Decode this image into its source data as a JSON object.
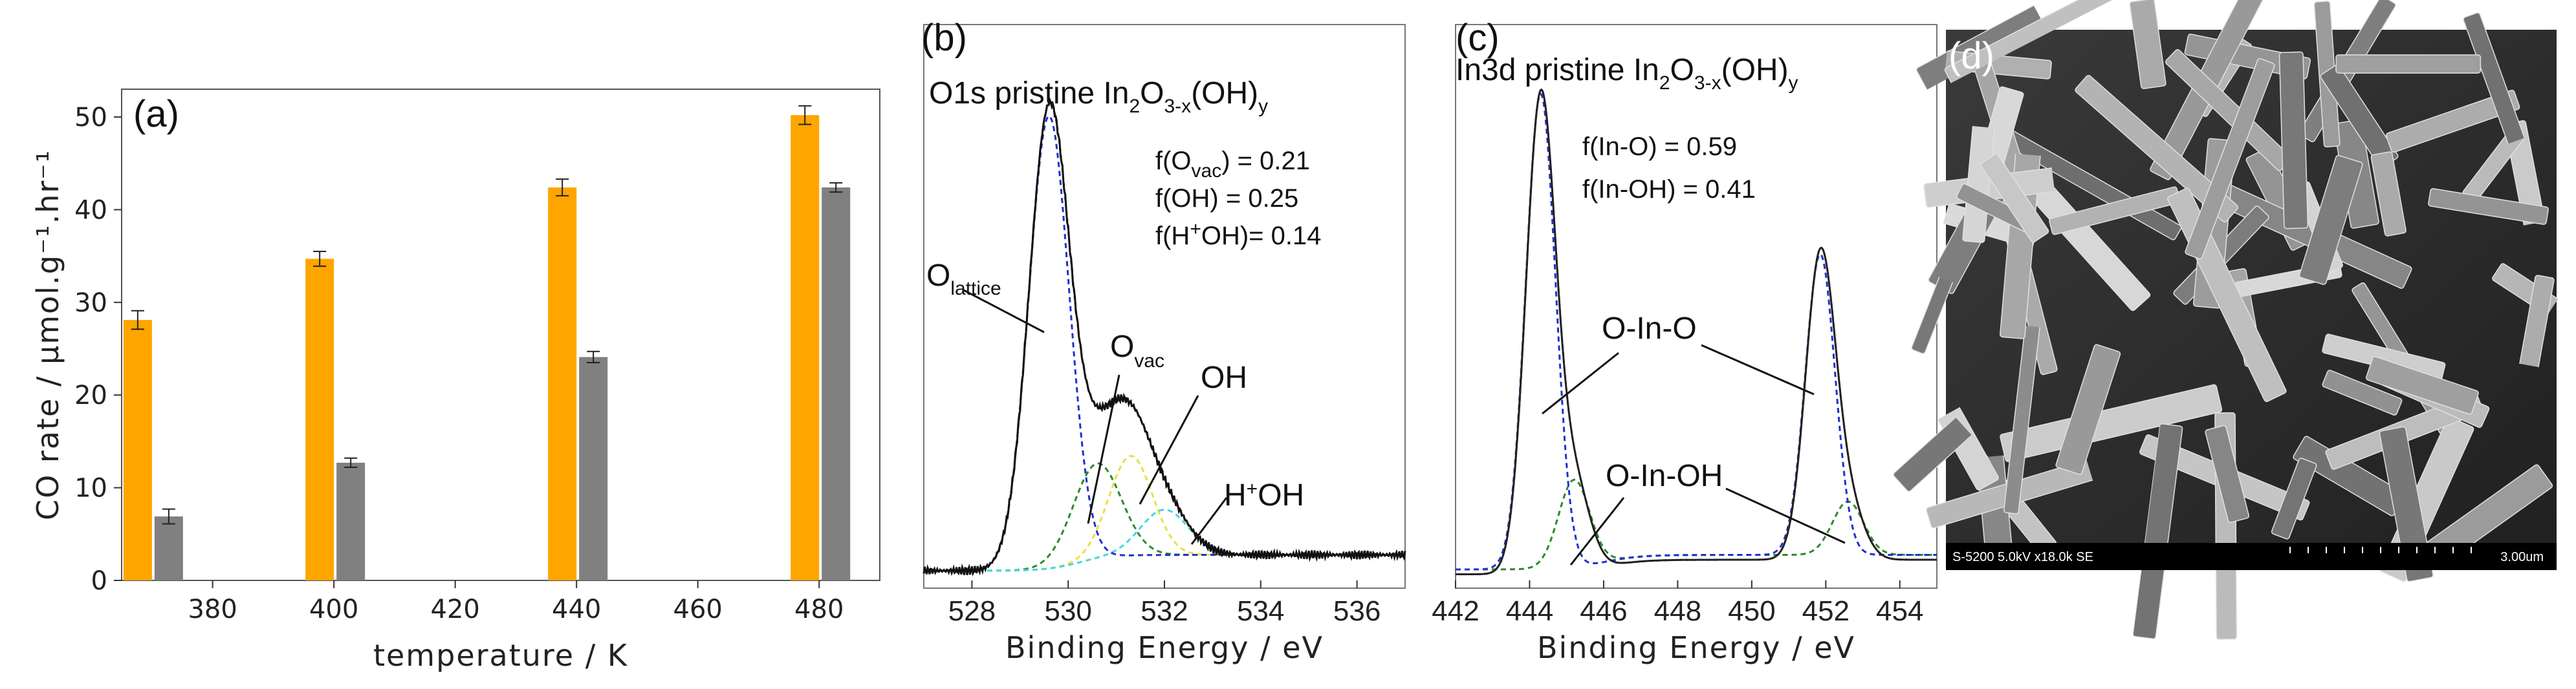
{
  "chart_data": [
    {
      "panel": "(a)",
      "type": "bar",
      "xlabel": "temperature / K",
      "ylabel": "CO rate / μmol.g⁻¹.hr⁻¹",
      "xlim": [
        365,
        490
      ],
      "ylim": [
        0,
        53
      ],
      "xticks": [
        380,
        400,
        420,
        440,
        460,
        480
      ],
      "yticks": [
        0,
        10,
        20,
        30,
        40,
        50
      ],
      "colors": [
        "#FFA500",
        "#808080"
      ],
      "x": [
        370,
        400,
        440,
        480
      ],
      "series": [
        {
          "name": "orange",
          "values": [
            28.1,
            34.7,
            42.4,
            50.2
          ],
          "errors": [
            1.0,
            0.8,
            0.9,
            1.0
          ]
        },
        {
          "name": "gray",
          "values": [
            6.9,
            12.7,
            24.1,
            42.4
          ],
          "errors": [
            0.8,
            0.5,
            0.6,
            0.5
          ]
        }
      ]
    },
    {
      "panel": "(b)",
      "type": "line",
      "title_main": "O1s pristine In",
      "title_sub1": "2",
      "title_mid": "O",
      "title_sub2": "3-x",
      "title_end": "(OH)",
      "title_sub3": "y",
      "xlabel": "Binding Energy / eV",
      "xlim": [
        527,
        537
      ],
      "xticks": [
        528,
        530,
        532,
        534,
        536
      ],
      "fractions": [
        {
          "label": "f(O",
          "sub": "vac",
          "value": ")    = 0.21"
        },
        {
          "label": "f(OH)     = 0.25"
        },
        {
          "label": "f(H",
          "sup": "+",
          "value": "OH)= 0.14"
        }
      ],
      "peaks": [
        {
          "name": "O",
          "sub": "lattice",
          "center": 529.6,
          "height": 1.0
        },
        {
          "name": "O",
          "sub": "vac",
          "center": 530.6,
          "height": 0.21
        },
        {
          "name": "OH",
          "center": 531.3,
          "height": 0.22
        },
        {
          "name": "H",
          "sup": "+",
          "after": "OH",
          "center": 532.0,
          "height": 0.1
        }
      ]
    },
    {
      "panel": "(c)",
      "type": "line",
      "title_main": "In3d pristine In",
      "title_sub1": "2",
      "title_mid": "O",
      "title_sub2": "3-x",
      "title_end": "(OH)",
      "title_sub3": "y",
      "xlabel": "Binding Energy / eV",
      "xlim": [
        442,
        455
      ],
      "xticks": [
        442,
        444,
        446,
        448,
        450,
        452,
        454
      ],
      "fractions": [
        {
          "label": "f(In-O)   = 0.59"
        },
        {
          "label": "f(In-OH) = 0.41"
        }
      ],
      "peaks": [
        {
          "name": "O-In-O",
          "centers": [
            444.3,
            451.9
          ]
        },
        {
          "name": "O-In-OH",
          "centers": [
            445.2,
            452.6
          ]
        }
      ]
    },
    {
      "panel": "(d)",
      "type": "image",
      "scalebar_text": "S-5200 5.0kV x18.0k SE",
      "scale_label": "3.00um"
    }
  ]
}
